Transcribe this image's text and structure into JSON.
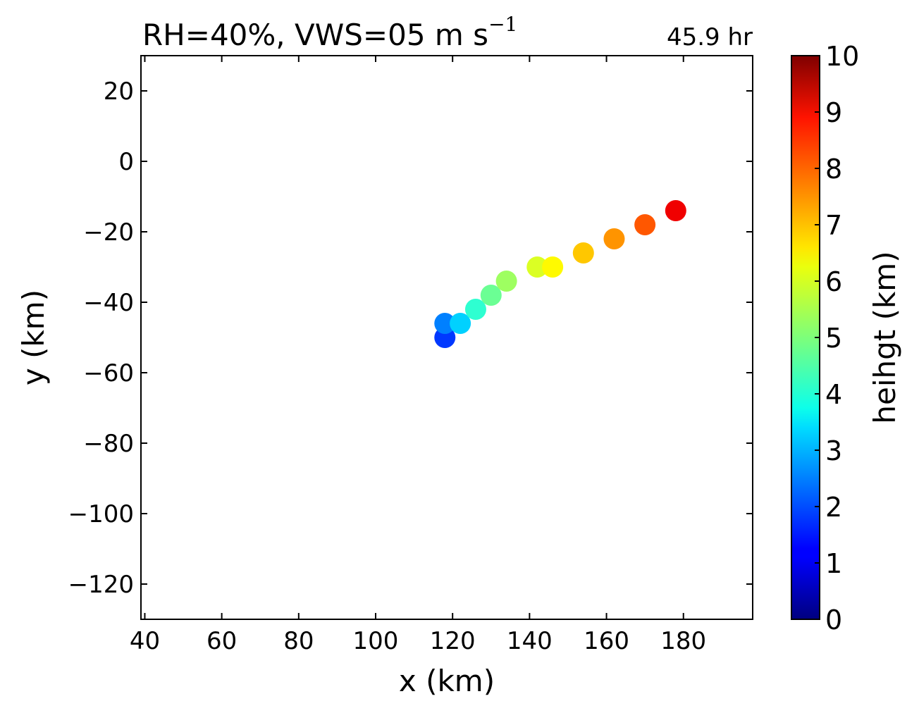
{
  "chart_data": {
    "type": "scatter",
    "title_main": "RH=40%, VWS=05 m s",
    "title_sup": "−1",
    "time_label": "45.9 hr",
    "time_label_color": "#0000ff",
    "xlabel": "x (km)",
    "ylabel": "y (km)",
    "xlim": [
      39,
      198
    ],
    "ylim": [
      -130,
      30
    ],
    "xticks": [
      40,
      60,
      80,
      100,
      120,
      140,
      160,
      180
    ],
    "yticks": [
      20,
      0,
      -20,
      -40,
      -60,
      -80,
      -100,
      -120
    ],
    "colorbar": {
      "label": "heihgt (km)",
      "colormap": "jet",
      "range": [
        0,
        10
      ],
      "ticks": [
        0,
        1,
        2,
        3,
        4,
        5,
        6,
        7,
        8,
        9,
        10
      ]
    },
    "points": [
      {
        "x": 118,
        "y": -50,
        "height": 1.8
      },
      {
        "x": 118,
        "y": -46,
        "height": 2.5
      },
      {
        "x": 122,
        "y": -46,
        "height": 3.3
      },
      {
        "x": 126,
        "y": -42,
        "height": 4.2
      },
      {
        "x": 130,
        "y": -38,
        "height": 4.8
      },
      {
        "x": 134,
        "y": -34,
        "height": 5.3
      },
      {
        "x": 142,
        "y": -30,
        "height": 5.9
      },
      {
        "x": 146,
        "y": -30,
        "height": 6.3
      },
      {
        "x": 154,
        "y": -26,
        "height": 6.8
      },
      {
        "x": 162,
        "y": -22,
        "height": 7.3
      },
      {
        "x": 170,
        "y": -18,
        "height": 7.9
      },
      {
        "x": 178,
        "y": -14,
        "height": 8.9
      }
    ]
  }
}
